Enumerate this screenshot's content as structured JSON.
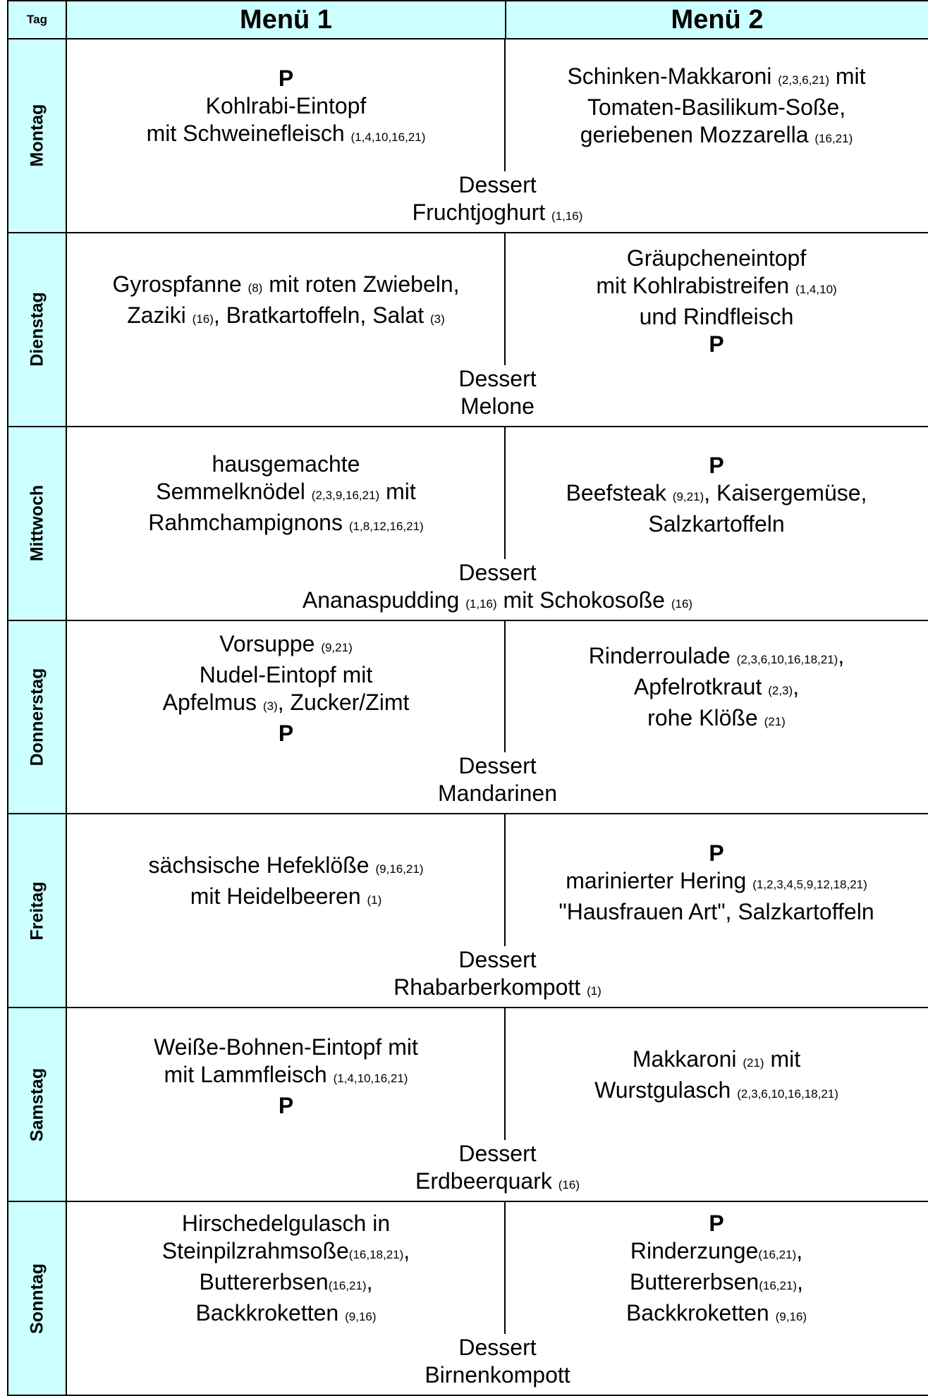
{
  "header": {
    "tag": "Tag",
    "menu1": "Menü 1",
    "menu2": "Menü 2"
  },
  "days": [
    {
      "name": "Montag",
      "menu1": [
        {
          "parts": [
            "P"
          ],
          "bold": true
        },
        {
          "parts": [
            "Kohlrabi-Eintopf"
          ]
        },
        {
          "parts": [
            "mit Schweinefleisch ",
            "(1,4,10,16,21)"
          ]
        }
      ],
      "menu2": [
        {
          "parts": [
            "Schinken-Makkaroni ",
            "(2,3,6,21)",
            " mit"
          ]
        },
        {
          "parts": [
            "Tomaten-Basilikum-Soße,"
          ]
        },
        {
          "parts": [
            "geriebenen Mozzarella ",
            "(16,21)"
          ]
        }
      ],
      "dessert": [
        {
          "parts": [
            "Dessert"
          ]
        },
        {
          "parts": [
            "Fruchtjoghurt ",
            "(1,16)"
          ]
        }
      ]
    },
    {
      "name": "Dienstag",
      "menu1": [
        {
          "parts": [
            "Gyrospfanne ",
            "(8)",
            " mit roten Zwiebeln,"
          ]
        },
        {
          "parts": [
            "Zaziki ",
            "(16)",
            ", Bratkartoffeln, Salat ",
            "(3)"
          ]
        }
      ],
      "menu2": [
        {
          "parts": [
            "Gräupcheneintopf"
          ]
        },
        {
          "parts": [
            "mit Kohlrabistreifen ",
            "(1,4,10)"
          ]
        },
        {
          "parts": [
            "und Rindfleisch"
          ]
        },
        {
          "parts": [
            "P"
          ],
          "bold": true
        }
      ],
      "dessert": [
        {
          "parts": [
            "Dessert"
          ]
        },
        {
          "parts": [
            "Melone"
          ]
        }
      ]
    },
    {
      "name": "Mittwoch",
      "menu1": [
        {
          "parts": [
            "hausgemachte"
          ]
        },
        {
          "parts": [
            "Semmelknödel ",
            "(2,3,9,16,21)",
            " mit"
          ]
        },
        {
          "parts": [
            "Rahmchampignons ",
            "(1,8,12,16,21)"
          ]
        }
      ],
      "menu2": [
        {
          "parts": [
            "P"
          ],
          "bold": true
        },
        {
          "parts": [
            "Beefsteak ",
            "(9,21)",
            ", Kaisergemüse,"
          ]
        },
        {
          "parts": [
            "Salzkartoffeln"
          ]
        }
      ],
      "dessert": [
        {
          "parts": [
            "Dessert"
          ]
        },
        {
          "parts": [
            "Ananaspudding ",
            "(1,16)",
            " mit Schokosoße ",
            "(16)"
          ]
        }
      ]
    },
    {
      "name": "Donnerstag",
      "menu1": [
        {
          "parts": [
            "Vorsuppe ",
            "(9,21)"
          ]
        },
        {
          "parts": [
            "Nudel-Eintopf mit"
          ]
        },
        {
          "parts": [
            "Apfelmus ",
            "(3)",
            ", Zucker/Zimt"
          ]
        },
        {
          "parts": [
            "P"
          ],
          "bold": true
        }
      ],
      "menu2": [
        {
          "parts": [
            "Rinderroulade ",
            "(2,3,6,10,16,18,21)",
            ","
          ]
        },
        {
          "parts": [
            "Apfelrotkraut ",
            "(2,3)",
            ","
          ]
        },
        {
          "parts": [
            "rohe Klöße ",
            "(21)"
          ]
        }
      ],
      "dessert": [
        {
          "parts": [
            "Dessert"
          ]
        },
        {
          "parts": [
            "Mandarinen"
          ]
        }
      ]
    },
    {
      "name": "Freitag",
      "menu1": [
        {
          "parts": [
            "sächsische Hefeklöße ",
            "(9,16,21)"
          ]
        },
        {
          "parts": [
            "mit Heidelbeeren ",
            "(1)"
          ]
        }
      ],
      "menu2": [
        {
          "parts": [
            "P"
          ],
          "bold": true
        },
        {
          "parts": [
            "marinierter Hering ",
            "(1,2,3,4,5,9,12,18,21)"
          ]
        },
        {
          "parts": [
            "\"Hausfrauen Art\", Salzkartoffeln"
          ]
        }
      ],
      "dessert": [
        {
          "parts": [
            "Dessert"
          ]
        },
        {
          "parts": [
            "Rhabarberkompott ",
            "(1)"
          ]
        }
      ]
    },
    {
      "name": "Samstag",
      "menu1": [
        {
          "parts": [
            "Weiße-Bohnen-Eintopf mit"
          ]
        },
        {
          "parts": [
            "mit Lammfleisch ",
            "(1,4,10,16,21)"
          ]
        },
        {
          "parts": [
            "P"
          ],
          "bold": true
        }
      ],
      "menu2": [
        {
          "parts": [
            "Makkaroni ",
            "(21)",
            " mit"
          ]
        },
        {
          "parts": [
            "Wurstgulasch ",
            "(2,3,6,10,16,18,21)"
          ]
        }
      ],
      "dessert": [
        {
          "parts": [
            "Dessert"
          ]
        },
        {
          "parts": [
            "Erdbeerquark ",
            "(16)"
          ]
        }
      ]
    },
    {
      "name": "Sonntag",
      "menu1": [
        {
          "parts": [
            "Hirschedelgulasch in"
          ]
        },
        {
          "parts": [
            "Steinpilzrahmsoße",
            "(16,18,21)",
            ","
          ]
        },
        {
          "parts": [
            "Buttererbsen",
            "(16,21)",
            ","
          ]
        },
        {
          "parts": [
            "Backkroketten ",
            "(9,16)"
          ]
        }
      ],
      "menu2": [
        {
          "parts": [
            "P"
          ],
          "bold": true
        },
        {
          "parts": [
            "Rinderzunge",
            "(16,21)",
            ","
          ]
        },
        {
          "parts": [
            "Buttererbsen",
            "(16,21)",
            ","
          ]
        },
        {
          "parts": [
            "Backkroketten ",
            "(9,16)"
          ]
        }
      ],
      "dessert": [
        {
          "parts": [
            "Dessert"
          ]
        },
        {
          "parts": [
            "Birnenkompott"
          ]
        }
      ]
    }
  ]
}
